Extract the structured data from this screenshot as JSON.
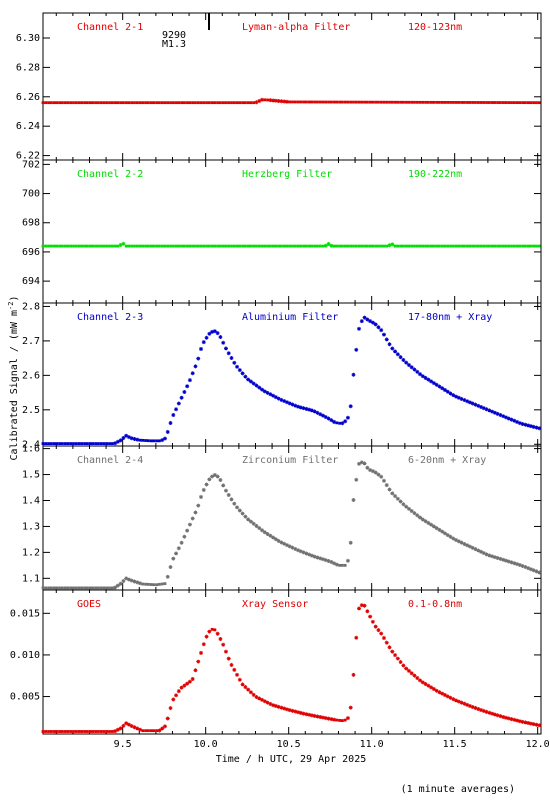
{
  "figure": {
    "xlabel": "Time / h UTC, 29 Apr 2025",
    "ylabel_main": "Calibrated Signal / (mW m",
    "ylabel_sup": "-2",
    "ylabel_end": ")",
    "footnote": "(1 minute averages)",
    "marker_text_1": "9290",
    "marker_text_2": "M1.3"
  },
  "chart_data": [
    {
      "type": "scatter",
      "panel": "Channel 2-1",
      "labels": [
        "Channel 2-1",
        "Lyman-alpha Filter",
        "120-123nm"
      ],
      "color": "#e00000",
      "ylim": [
        6.217,
        6.317
      ],
      "yticks": [
        6.22,
        6.24,
        6.26,
        6.28,
        6.3
      ],
      "yticklabels": [
        "6.22",
        "6.24",
        "6.26",
        "6.28",
        "6.30"
      ],
      "xlim": [
        9.02,
        12.02
      ],
      "points": [
        [
          9.02,
          6.256
        ],
        [
          10.3,
          6.256
        ],
        [
          10.34,
          6.258
        ],
        [
          10.38,
          6.2578
        ],
        [
          10.5,
          6.2565
        ],
        [
          12.02,
          6.256
        ]
      ]
    },
    {
      "type": "scatter",
      "panel": "Channel 2-2",
      "labels": [
        "Channel 2-2",
        "Herzberg Filter",
        "190-222nm"
      ],
      "color": "#00dd00",
      "ylim": [
        692.5,
        702.3
      ],
      "yticks": [
        694,
        696,
        698,
        700,
        702
      ],
      "yticklabels": [
        "694",
        "696",
        "698",
        "700",
        "702"
      ],
      "xlim": [
        9.02,
        12.02
      ],
      "points": [
        [
          9.02,
          696.4
        ],
        [
          9.48,
          696.4
        ],
        [
          9.5,
          696.6
        ],
        [
          9.52,
          696.4
        ],
        [
          10.72,
          696.4
        ],
        [
          10.74,
          696.55
        ],
        [
          10.76,
          696.4
        ],
        [
          11.1,
          696.4
        ],
        [
          11.12,
          696.55
        ],
        [
          11.14,
          696.4
        ],
        [
          12.02,
          696.4
        ]
      ]
    },
    {
      "type": "scatter",
      "panel": "Channel 2-3",
      "labels": [
        "Channel 2-3",
        "Aluminium Filter",
        "17-80nm + Xray"
      ],
      "color": "#0000cc",
      "ylim": [
        2.395,
        2.81
      ],
      "yticks": [
        2.4,
        2.5,
        2.6,
        2.7,
        2.8
      ],
      "yticklabels": [
        "2.4",
        "2.5",
        "2.6",
        "2.7",
        "2.8"
      ],
      "xlim": [
        9.02,
        12.02
      ],
      "points": [
        [
          9.02,
          2.402
        ],
        [
          9.45,
          2.402
        ],
        [
          9.49,
          2.412
        ],
        [
          9.52,
          2.425
        ],
        [
          9.55,
          2.418
        ],
        [
          9.6,
          2.412
        ],
        [
          9.67,
          2.41
        ],
        [
          9.73,
          2.41
        ],
        [
          9.76,
          2.418
        ],
        [
          9.8,
          2.48
        ],
        [
          9.85,
          2.53
        ],
        [
          9.9,
          2.58
        ],
        [
          9.95,
          2.64
        ],
        [
          9.98,
          2.69
        ],
        [
          10.02,
          2.72
        ],
        [
          10.05,
          2.73
        ],
        [
          10.08,
          2.72
        ],
        [
          10.12,
          2.68
        ],
        [
          10.18,
          2.63
        ],
        [
          10.25,
          2.59
        ],
        [
          10.35,
          2.555
        ],
        [
          10.45,
          2.53
        ],
        [
          10.55,
          2.51
        ],
        [
          10.65,
          2.497
        ],
        [
          10.74,
          2.475
        ],
        [
          10.78,
          2.463
        ],
        [
          10.82,
          2.46
        ],
        [
          10.85,
          2.47
        ],
        [
          10.87,
          2.49
        ],
        [
          10.89,
          2.6
        ],
        [
          10.92,
          2.73
        ],
        [
          10.95,
          2.77
        ],
        [
          10.98,
          2.76
        ],
        [
          11.02,
          2.75
        ],
        [
          11.06,
          2.73
        ],
        [
          11.12,
          2.68
        ],
        [
          11.2,
          2.64
        ],
        [
          11.3,
          2.6
        ],
        [
          11.4,
          2.57
        ],
        [
          11.5,
          2.54
        ],
        [
          11.6,
          2.52
        ],
        [
          11.7,
          2.5
        ],
        [
          11.8,
          2.48
        ],
        [
          11.9,
          2.46
        ],
        [
          12.02,
          2.445
        ]
      ]
    },
    {
      "type": "scatter",
      "panel": "Channel 2-4",
      "labels": [
        "Channel 2-4",
        "Zirconium Filter",
        "6-20nm + Xray"
      ],
      "color": "#707070",
      "ylim": [
        1.055,
        1.61
      ],
      "yticks": [
        1.1,
        1.2,
        1.3,
        1.4,
        1.5,
        1.6
      ],
      "yticklabels": [
        "1.1",
        "1.2",
        "1.3",
        "1.4",
        "1.5",
        "1.6"
      ],
      "xlim": [
        9.02,
        12.02
      ],
      "points": [
        [
          9.02,
          1.063
        ],
        [
          9.45,
          1.063
        ],
        [
          9.49,
          1.08
        ],
        [
          9.52,
          1.1
        ],
        [
          9.56,
          1.09
        ],
        [
          9.62,
          1.078
        ],
        [
          9.7,
          1.075
        ],
        [
          9.76,
          1.08
        ],
        [
          9.8,
          1.17
        ],
        [
          9.85,
          1.23
        ],
        [
          9.9,
          1.3
        ],
        [
          9.95,
          1.37
        ],
        [
          9.98,
          1.43
        ],
        [
          10.02,
          1.48
        ],
        [
          10.05,
          1.5
        ],
        [
          10.08,
          1.49
        ],
        [
          10.12,
          1.44
        ],
        [
          10.18,
          1.38
        ],
        [
          10.25,
          1.33
        ],
        [
          10.35,
          1.28
        ],
        [
          10.45,
          1.24
        ],
        [
          10.55,
          1.21
        ],
        [
          10.65,
          1.185
        ],
        [
          10.75,
          1.165
        ],
        [
          10.8,
          1.15
        ],
        [
          10.85,
          1.15
        ],
        [
          10.87,
          1.2
        ],
        [
          10.89,
          1.4
        ],
        [
          10.92,
          1.54
        ],
        [
          10.95,
          1.55
        ],
        [
          10.98,
          1.52
        ],
        [
          11.02,
          1.51
        ],
        [
          11.06,
          1.49
        ],
        [
          11.12,
          1.43
        ],
        [
          11.2,
          1.38
        ],
        [
          11.3,
          1.33
        ],
        [
          11.4,
          1.29
        ],
        [
          11.5,
          1.25
        ],
        [
          11.6,
          1.22
        ],
        [
          11.7,
          1.19
        ],
        [
          11.8,
          1.17
        ],
        [
          11.9,
          1.15
        ],
        [
          12.02,
          1.12
        ]
      ]
    },
    {
      "type": "scatter",
      "panel": "GOES",
      "labels": [
        "GOES",
        "Xray Sensor",
        "0.1-0.8nm"
      ],
      "color": "#e00000",
      "ylim": [
        0.0005,
        0.0178
      ],
      "yticks": [
        0.005,
        0.01,
        0.015
      ],
      "yticklabels": [
        "0.005",
        "0.010",
        "0.015"
      ],
      "xlim": [
        9.02,
        12.02
      ],
      "points": [
        [
          9.02,
          0.0008
        ],
        [
          9.45,
          0.0008
        ],
        [
          9.49,
          0.0012
        ],
        [
          9.52,
          0.0018
        ],
        [
          9.56,
          0.0014
        ],
        [
          9.62,
          0.0009
        ],
        [
          9.72,
          0.0009
        ],
        [
          9.76,
          0.0015
        ],
        [
          9.8,
          0.0045
        ],
        [
          9.85,
          0.006
        ],
        [
          9.92,
          0.007
        ],
        [
          9.96,
          0.0095
        ],
        [
          10.0,
          0.012
        ],
        [
          10.03,
          0.0131
        ],
        [
          10.06,
          0.013
        ],
        [
          10.1,
          0.0115
        ],
        [
          10.15,
          0.009
        ],
        [
          10.22,
          0.0065
        ],
        [
          10.3,
          0.005
        ],
        [
          10.4,
          0.004
        ],
        [
          10.5,
          0.0034
        ],
        [
          10.6,
          0.0029
        ],
        [
          10.7,
          0.0025
        ],
        [
          10.78,
          0.0022
        ],
        [
          10.82,
          0.0021
        ],
        [
          10.85,
          0.0022
        ],
        [
          10.87,
          0.0028
        ],
        [
          10.89,
          0.0075
        ],
        [
          10.92,
          0.0155
        ],
        [
          10.95,
          0.0162
        ],
        [
          10.98,
          0.015
        ],
        [
          11.02,
          0.0135
        ],
        [
          11.06,
          0.0125
        ],
        [
          11.12,
          0.0105
        ],
        [
          11.2,
          0.0085
        ],
        [
          11.3,
          0.0068
        ],
        [
          11.4,
          0.0056
        ],
        [
          11.5,
          0.0046
        ],
        [
          11.6,
          0.0038
        ],
        [
          11.7,
          0.0031
        ],
        [
          11.8,
          0.0025
        ],
        [
          11.9,
          0.002
        ],
        [
          12.02,
          0.0015
        ]
      ]
    }
  ],
  "xaxis": {
    "ticks": [
      9.5,
      10.0,
      10.5,
      11.0,
      11.5,
      12.0
    ],
    "ticklabels": [
      "9.5",
      "10.0",
      "10.5",
      "11.0",
      "11.5",
      "12.0"
    ],
    "minor_step": 0.1,
    "flare_marker_x": 10.02
  }
}
